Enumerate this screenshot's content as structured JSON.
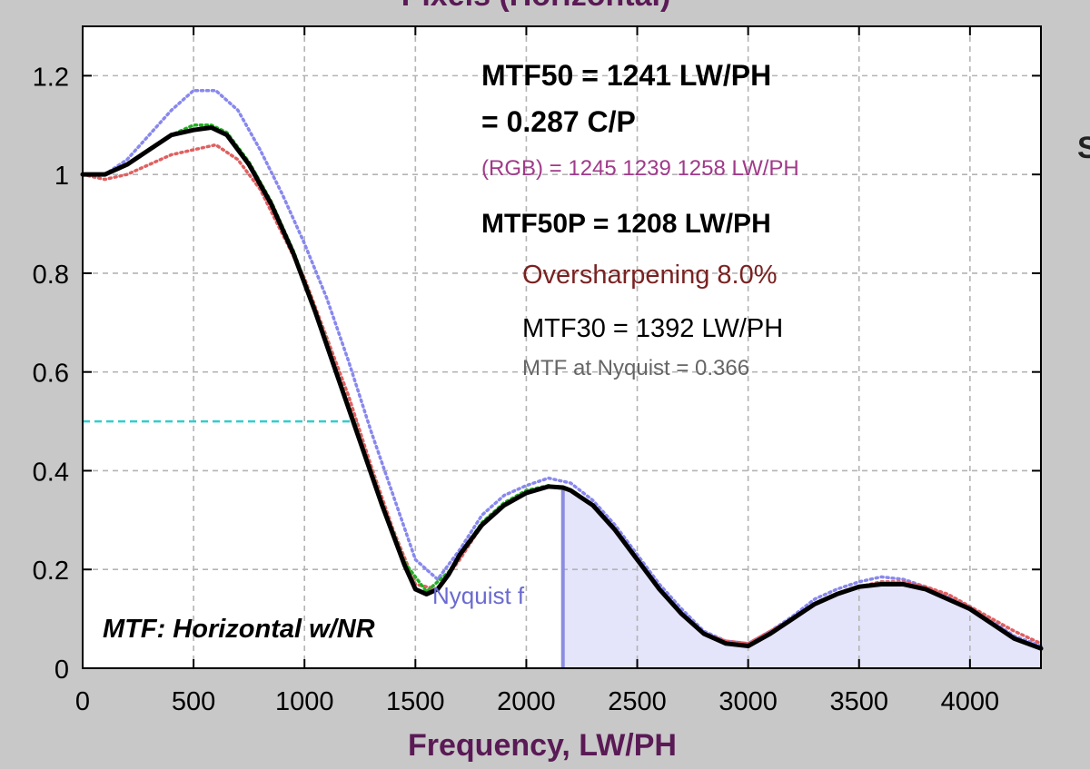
{
  "window": {
    "top_title": "Pixels (Horizontal)",
    "right_edge_char": "S"
  },
  "colors": {
    "background": "#c8c8c8",
    "plot_bg": "#ffffff",
    "grid": "#b4b4b4",
    "axis_label": "#5a1a55",
    "composite": "#000000",
    "red_channel": "#e06060",
    "green_channel": "#22b022",
    "blue_channel": "#8888ee",
    "mtf50_line": "#33cccc",
    "nyquist_fill": "#e4e4fa",
    "nyquist_line": "#8c8ce0",
    "rgb_text": "#a03a8a",
    "oversharp_text": "#7a2222",
    "nyq_text": "#666666",
    "nyquist_label": "#6a6ad0"
  },
  "chart_data": {
    "type": "line",
    "xlabel": "Frequency, LW/PH",
    "xlim": [
      0,
      4320
    ],
    "ylim": [
      0,
      1.3
    ],
    "xticks": [
      0,
      500,
      1000,
      1500,
      2000,
      2500,
      3000,
      3500,
      4000
    ],
    "yticks": [
      0,
      0.2,
      0.4,
      0.6,
      0.8,
      1,
      1.2
    ],
    "ytick_labels": [
      "0",
      "0.2",
      "0.4",
      "0.6",
      "0.8",
      "1",
      "1.2"
    ],
    "grid": true,
    "nyquist_frequency": 2165,
    "nyquist_label": "Nyquist f",
    "mtf50_reference": {
      "y": 0.5,
      "x_end": 1241
    },
    "plot_label": "MTF: Horizontal w/NR",
    "annotations": [
      {
        "id": "mtf50",
        "text": "MTF50 = 1241 LW/PH"
      },
      {
        "id": "cp",
        "text": "= 0.287 C/P"
      },
      {
        "id": "rgb",
        "text": "(RGB) = 1245  1239  1258 LW/PH"
      },
      {
        "id": "mtf50p",
        "text": "MTF50P = 1208 LW/PH"
      },
      {
        "id": "oversharp",
        "text": "Oversharpening  8.0%"
      },
      {
        "id": "mtf30",
        "text": "MTF30 = 1392 LW/PH"
      },
      {
        "id": "nyq",
        "text": "MTF at Nyquist = 0.366"
      }
    ],
    "series": [
      {
        "color_key": "composite",
        "x": [
          0,
          100,
          200,
          300,
          400,
          500,
          580,
          650,
          750,
          850,
          950,
          1050,
          1150,
          1250,
          1350,
          1450,
          1500,
          1550,
          1600,
          1650,
          1700,
          1800,
          1900,
          2000,
          2100,
          2165,
          2200,
          2300,
          2400,
          2500,
          2600,
          2700,
          2800,
          2900,
          3000,
          3100,
          3200,
          3300,
          3400,
          3500,
          3600,
          3700,
          3800,
          3900,
          4000,
          4100,
          4200,
          4320
        ],
        "y": [
          1.0,
          1.0,
          1.02,
          1.05,
          1.08,
          1.09,
          1.095,
          1.08,
          1.02,
          0.94,
          0.84,
          0.72,
          0.59,
          0.46,
          0.33,
          0.21,
          0.16,
          0.15,
          0.16,
          0.19,
          0.23,
          0.29,
          0.33,
          0.355,
          0.368,
          0.366,
          0.36,
          0.33,
          0.28,
          0.22,
          0.16,
          0.11,
          0.07,
          0.05,
          0.045,
          0.07,
          0.1,
          0.13,
          0.15,
          0.165,
          0.17,
          0.17,
          0.16,
          0.14,
          0.12,
          0.09,
          0.06,
          0.04
        ]
      },
      {
        "color_key": "red_channel",
        "x": [
          0,
          100,
          200,
          300,
          400,
          500,
          600,
          700,
          800,
          900,
          1000,
          1100,
          1200,
          1300,
          1400,
          1500,
          1600,
          1700,
          1800,
          1900,
          2000,
          2100,
          2200,
          2300,
          2400,
          2500,
          2600,
          2700,
          2800,
          2900,
          3000,
          3100,
          3200,
          3300,
          3400,
          3500,
          3600,
          3700,
          3800,
          3900,
          4000,
          4100,
          4200,
          4320
        ],
        "y": [
          1.0,
          0.99,
          1.0,
          1.02,
          1.04,
          1.05,
          1.06,
          1.03,
          0.97,
          0.88,
          0.79,
          0.67,
          0.55,
          0.41,
          0.28,
          0.17,
          0.16,
          0.22,
          0.29,
          0.33,
          0.355,
          0.37,
          0.36,
          0.33,
          0.28,
          0.22,
          0.16,
          0.11,
          0.07,
          0.055,
          0.05,
          0.075,
          0.1,
          0.13,
          0.15,
          0.165,
          0.175,
          0.175,
          0.165,
          0.15,
          0.125,
          0.1,
          0.075,
          0.05
        ]
      },
      {
        "color_key": "green_channel",
        "x": [
          0,
          100,
          200,
          300,
          400,
          500,
          580,
          650,
          750,
          850,
          950,
          1050,
          1150,
          1250,
          1350,
          1450,
          1550,
          1650,
          1800,
          1900,
          2000,
          2100,
          2200,
          2300,
          2400,
          2500,
          2600,
          2700,
          2800,
          2900,
          3000,
          3100,
          3200,
          3300,
          3400,
          3500,
          3600,
          3700,
          3800,
          3900,
          4000,
          4100,
          4200,
          4320
        ],
        "y": [
          1.0,
          1.0,
          1.02,
          1.05,
          1.08,
          1.1,
          1.1,
          1.085,
          1.025,
          0.945,
          0.845,
          0.725,
          0.595,
          0.465,
          0.335,
          0.215,
          0.155,
          0.195,
          0.295,
          0.335,
          0.36,
          0.37,
          0.36,
          0.33,
          0.28,
          0.22,
          0.16,
          0.11,
          0.07,
          0.05,
          0.045,
          0.07,
          0.1,
          0.13,
          0.15,
          0.165,
          0.17,
          0.17,
          0.16,
          0.14,
          0.12,
          0.09,
          0.06,
          0.04
        ]
      },
      {
        "color_key": "blue_channel",
        "x": [
          0,
          100,
          200,
          300,
          400,
          500,
          600,
          700,
          800,
          900,
          1000,
          1100,
          1200,
          1300,
          1400,
          1500,
          1600,
          1700,
          1800,
          1900,
          2000,
          2100,
          2200,
          2300,
          2400,
          2500,
          2600,
          2700,
          2800,
          2900,
          3000,
          3100,
          3200,
          3300,
          3400,
          3500,
          3600,
          3700,
          3800,
          3900,
          4000,
          4100,
          4200,
          4320
        ],
        "y": [
          1.0,
          1.0,
          1.03,
          1.08,
          1.13,
          1.17,
          1.17,
          1.13,
          1.05,
          0.96,
          0.86,
          0.75,
          0.62,
          0.48,
          0.35,
          0.22,
          0.18,
          0.24,
          0.31,
          0.35,
          0.37,
          0.385,
          0.375,
          0.34,
          0.29,
          0.23,
          0.17,
          0.12,
          0.075,
          0.055,
          0.05,
          0.075,
          0.105,
          0.14,
          0.16,
          0.175,
          0.185,
          0.18,
          0.165,
          0.145,
          0.125,
          0.095,
          0.065,
          0.045
        ]
      }
    ]
  }
}
